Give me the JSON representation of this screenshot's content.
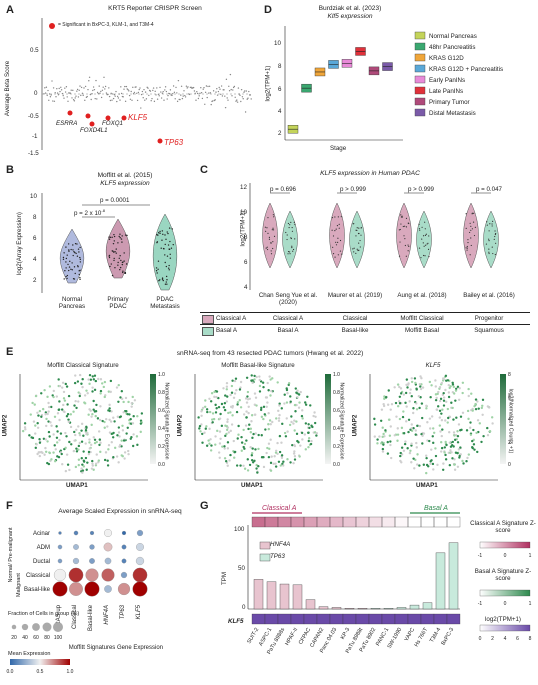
{
  "panels": {
    "a": "A",
    "b": "B",
    "c": "C",
    "d": "D",
    "e": "E",
    "f": "F",
    "g": "G"
  },
  "a": {
    "title": "KRT5 Reporter CRISPR Screen",
    "ylabel": "Average Beta Score",
    "yticks": [
      "0.5",
      "0",
      "-0.5",
      "-1",
      "-1.5"
    ],
    "legend": "= Significant in BxPC-3, KLM-1, and T3M-4",
    "genes": [
      {
        "name": "ESRRA",
        "red": false
      },
      {
        "name": "FOXQ1",
        "red": false
      },
      {
        "name": "FOXD4L1",
        "red": false
      },
      {
        "name": "KLF5",
        "red": true
      },
      {
        "name": "TP63",
        "red": true
      }
    ]
  },
  "b": {
    "title1": "Moffitt et al. (2015)",
    "title2": "KLF5 expression",
    "ylabel": "log2(Array Expression)",
    "yticks": [
      "10",
      "8",
      "6",
      "4",
      "2"
    ],
    "p1": "p = 0.0001",
    "p2": "p = 2 x 10",
    "p2exp": "-8",
    "groups": [
      "Normal Pancreas",
      "Primary PDAC",
      "PDAC Metastasis"
    ],
    "colors": [
      "#a7b3da",
      "#c78fa8",
      "#8fd1ba"
    ]
  },
  "c": {
    "title": "KLF5 expression in Human PDAC",
    "ylabel": "log2(TPM+1)",
    "yticks": [
      "12",
      "10",
      "8",
      "6",
      "4"
    ],
    "pvals": [
      "p = 0.696",
      "p > 0.999",
      "p > 0.999",
      "p = 0.047"
    ],
    "studies": [
      "Chan Seng Yue et al. (2020)",
      "Maurer et al. (2019)",
      "Aung et al. (2018)",
      "Bailey et al. (2016)"
    ],
    "rowA": {
      "label": "Classical A",
      "cells": [
        "Classical A",
        "Classical",
        "Moffitt Classical",
        "Progenitor"
      ]
    },
    "rowB": {
      "label": "Basal A",
      "cells": [
        "Basal A",
        "Basal-like",
        "Moffitt Basal",
        "Squamous"
      ]
    },
    "colors": {
      "classical": "#d9a9bd",
      "basal": "#a9dcc8"
    }
  },
  "d": {
    "title1": "Burdziak et al. (2023)",
    "title2": "Klf5 expression",
    "ylabel": "log2(TPM+1)",
    "yticks": [
      "10",
      "8",
      "6",
      "4",
      "2"
    ],
    "xlabel": "Stage",
    "legend": [
      {
        "label": "Normal Pancreas",
        "color": "#c4d45a"
      },
      {
        "label": "48hr Pancreatitis",
        "color": "#3aa870"
      },
      {
        "label": "KRAS G12D",
        "color": "#f0a63a"
      },
      {
        "label": "KRAS G12D + Pancreatitis",
        "color": "#5aa8d8"
      },
      {
        "label": "Early PanINs",
        "color": "#e88ad8"
      },
      {
        "label": "Late PanINs",
        "color": "#e0313a"
      },
      {
        "label": "Primary Tumor",
        "color": "#b04a7a"
      },
      {
        "label": "Distal Metastasis",
        "color": "#7a5aa8"
      }
    ],
    "points": [
      {
        "stage": 1,
        "value": 2.0
      },
      {
        "stage": 2,
        "value": 5.8
      },
      {
        "stage": 3,
        "value": 7.3
      },
      {
        "stage": 4,
        "value": 8.0
      },
      {
        "stage": 5,
        "value": 8.1
      },
      {
        "stage": 6,
        "value": 9.2
      },
      {
        "stage": 7,
        "value": 7.4
      },
      {
        "stage": 8,
        "value": 7.8
      }
    ]
  },
  "e": {
    "title": "snRNA-seq from 43 resected PDAC tumors (Hwang et al. 2022)",
    "maps": [
      {
        "title": "Moffitt Classical Signature",
        "ticks": [
          "1.0",
          "0.8",
          "0.6",
          "0.4",
          "0.2",
          "0.0"
        ],
        "cbar": "Normalized Signature Expression"
      },
      {
        "title": "Moffitt Basal-like Signature",
        "ticks": [
          "1.0",
          "0.8",
          "0.6",
          "0.4",
          "0.2",
          "0.0"
        ],
        "cbar": "Normalized Signature Expression"
      },
      {
        "title": "KLF5",
        "ticks": [
          "8",
          "6",
          "4",
          "2",
          "0"
        ],
        "cbar": "log2(Normalized Counts +1)"
      }
    ],
    "xlabel": "UMAP1",
    "ylabel": "UMAP2"
  },
  "f": {
    "title": "Average Scaled Expression in snRNA-seq",
    "rows": [
      "Acinar",
      "ADM",
      "Ductal",
      "Classical",
      "Basal-like"
    ],
    "cols": [
      "KRAS up",
      "Classical",
      "Basal-like",
      "HNF4A",
      "TP63",
      "KLF5"
    ],
    "group1": "Normal/ Pre-malignant",
    "group2": "Malignant",
    "colgroup1": "Moffitt Signatures",
    "colgroup2": "Gene Expression",
    "sizeTitle": "Fraction of Cells in group (%)",
    "sizeTicks": [
      "20",
      "40",
      "60",
      "80",
      "100"
    ],
    "colorTitle": "Mean Expression",
    "colorTicks": [
      "0.0",
      "0.5",
      "1.0"
    ],
    "matrix": [
      [
        [
          0.1,
          2
        ],
        [
          0.1,
          5
        ],
        [
          0.1,
          4
        ],
        [
          0.5,
          22
        ],
        [
          0.0,
          4
        ],
        [
          0.2,
          12
        ]
      ],
      [
        [
          0.2,
          5
        ],
        [
          0.3,
          10
        ],
        [
          0.2,
          8
        ],
        [
          0.6,
          28
        ],
        [
          0.1,
          6
        ],
        [
          0.4,
          22
        ]
      ],
      [
        [
          0.2,
          5
        ],
        [
          0.3,
          12
        ],
        [
          0.2,
          10
        ],
        [
          0.3,
          14
        ],
        [
          0.1,
          6
        ],
        [
          0.4,
          24
        ]
      ],
      [
        [
          0.5,
          60
        ],
        [
          0.9,
          90
        ],
        [
          0.7,
          70
        ],
        [
          0.8,
          70
        ],
        [
          0.2,
          12
        ],
        [
          0.9,
          90
        ]
      ],
      [
        [
          1.0,
          95
        ],
        [
          0.7,
          80
        ],
        [
          1.0,
          95
        ],
        [
          0.3,
          20
        ],
        [
          0.7,
          60
        ],
        [
          1.0,
          95
        ]
      ]
    ]
  },
  "g": {
    "arrowA": "Classical A",
    "arrowB": "Basal A",
    "ylabel": "TPM",
    "yticks": [
      "100",
      "50",
      "0"
    ],
    "series": [
      "HNF4A",
      "TP63"
    ],
    "rowlabel": "KLF5",
    "lines": [
      "SUIT-2",
      "ASPC-1",
      "PaTu 8988s",
      "HPAF-II",
      "CFPAC",
      "CAPAN2",
      "Panc 04.03",
      "KP-3",
      "PaTu 8988t",
      "PaTu 8902",
      "PANC-1",
      "SW-1990",
      "YAPC",
      "Hs 766T",
      "T3M-4",
      "BxPC-3"
    ],
    "hnf4a": [
      38,
      35,
      32,
      31,
      12,
      3,
      2,
      1,
      1,
      0,
      0,
      0,
      0,
      0,
      0,
      0
    ],
    "tp63": [
      0,
      0,
      0,
      0,
      0,
      0,
      0,
      0,
      0,
      1,
      1,
      2,
      5,
      8,
      72,
      85
    ],
    "legend1": "Classical A Signature Z-score",
    "legend2": "Basal A Signature Z-score",
    "legend3": "log2(TPM+1)",
    "ticks1": [
      "-1",
      "0",
      "1"
    ],
    "ticks3": [
      "0",
      "2",
      "4",
      "6",
      "8"
    ]
  }
}
